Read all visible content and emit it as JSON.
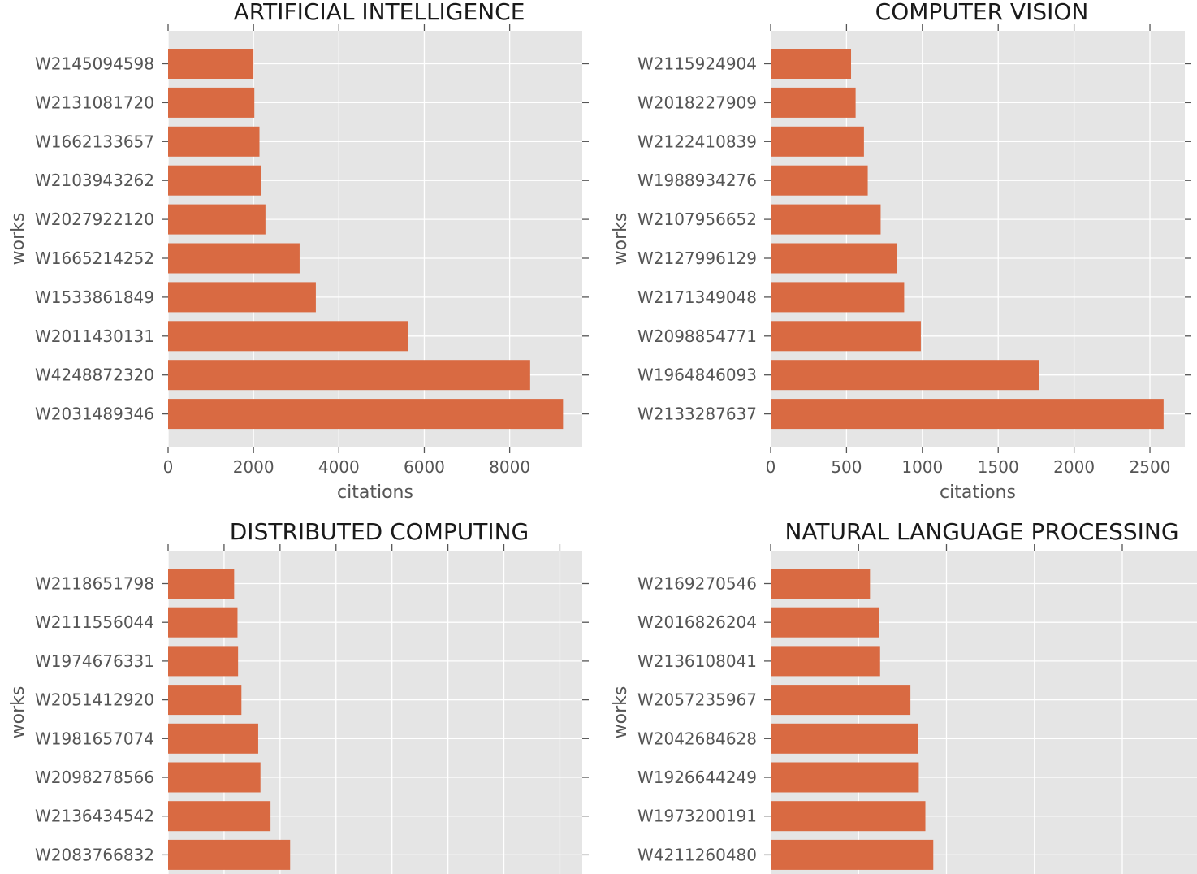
{
  "chart_data": [
    {
      "type": "bar",
      "orientation": "horizontal",
      "title": "ARTIFICIAL INTELLIGENCE",
      "xlabel": "citations",
      "ylabel": "works",
      "xlim": [
        0,
        9700
      ],
      "xticks": [
        0,
        2000,
        4000,
        6000,
        8000
      ],
      "xtick_labels_visible": true,
      "grid": true,
      "categories": [
        "W2145094598",
        "W2131081720",
        "W1662133657",
        "W2103943262",
        "W2027922120",
        "W1665214252",
        "W1533861849",
        "W2011430131",
        "W4248872320",
        "W2031489346"
      ],
      "values": [
        2000,
        2020,
        2140,
        2170,
        2280,
        3080,
        3460,
        5620,
        8480,
        9250
      ]
    },
    {
      "type": "bar",
      "orientation": "horizontal",
      "title": "COMPUTER VISION",
      "xlabel": "citations",
      "ylabel": "works",
      "xlim": [
        0,
        2730
      ],
      "xticks": [
        0,
        500,
        1000,
        1500,
        2000,
        2500
      ],
      "xtick_labels_visible": true,
      "grid": true,
      "categories": [
        "W2115924904",
        "W2018227909",
        "W2122410839",
        "W1988934276",
        "W2107956652",
        "W2127996129",
        "W2171349048",
        "W2098854771",
        "W1964846093",
        "W2133287637"
      ],
      "values": [
        530,
        560,
        615,
        640,
        725,
        835,
        880,
        990,
        1770,
        2590
      ]
    },
    {
      "type": "bar",
      "orientation": "horizontal",
      "title": "DISTRIBUTED COMPUTING",
      "xlabel": "",
      "ylabel": "works",
      "xlim": [
        0,
        3700
      ],
      "xticks": [
        0,
        500,
        1000,
        1500,
        2000,
        2500,
        3000,
        3500
      ],
      "xtick_labels_visible": false,
      "grid": true,
      "categories": [
        "W2118651798",
        "W2111556044",
        "W1974676331",
        "W2051412920",
        "W1981657074",
        "W2098278566",
        "W2136434542",
        "W2083766832"
      ],
      "values": [
        590,
        620,
        625,
        655,
        805,
        825,
        915,
        1090
      ]
    },
    {
      "type": "bar",
      "orientation": "horizontal",
      "title": "NATURAL LANGUAGE PROCESSING",
      "xlabel": "",
      "ylabel": "works",
      "xlim": [
        0,
        4850
      ],
      "xticks": [
        0,
        1000,
        2000,
        3000,
        4000
      ],
      "xtick_labels_visible": false,
      "grid": true,
      "categories": [
        "W2169270546",
        "W2016826204",
        "W2136108041",
        "W2057235967",
        "W2042684628",
        "W1926644249",
        "W1973200191",
        "W4211260480"
      ],
      "values": [
        1130,
        1230,
        1245,
        1590,
        1675,
        1685,
        1760,
        1850
      ]
    }
  ],
  "colors": {
    "bar": "#d96a42",
    "plot_background": "#e5e5e5",
    "grid": "#ffffff"
  }
}
